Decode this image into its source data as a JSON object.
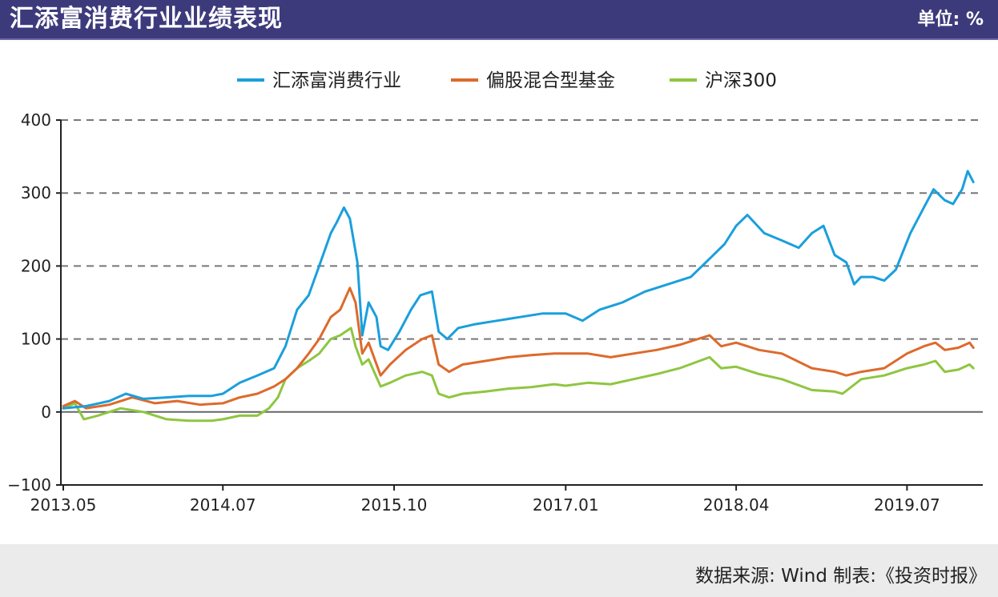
{
  "header": {
    "title": "汇添富消费行业业绩表现",
    "unit": "单位: %"
  },
  "footer": {
    "source": "数据来源: Wind  制表:《投资时报》"
  },
  "colors": {
    "header_bg": "#3d3a7c",
    "series1": "#1a9fdc",
    "series2": "#dd6a2c",
    "series3": "#8ec640",
    "grid": "#777777"
  },
  "chart_data": {
    "type": "line",
    "ylim": [
      -100,
      400
    ],
    "y_ticks": [
      {
        "label": "400",
        "value": 400
      },
      {
        "label": "300",
        "value": 300
      },
      {
        "label": "200",
        "value": 200
      },
      {
        "label": "100",
        "value": 100
      },
      {
        "label": "0",
        "value": 0
      },
      {
        "label": "−100",
        "value": -100
      }
    ],
    "x_range": [
      "2013-05-01",
      "2019-12-31"
    ],
    "x_ticks": [
      {
        "label": "2013.05",
        "date": "2013-05-01"
      },
      {
        "label": "2014.07",
        "date": "2014-07-01"
      },
      {
        "label": "2015.10",
        "date": "2015-10-01"
      },
      {
        "label": "2017.01",
        "date": "2017-01-01"
      },
      {
        "label": "2018.04",
        "date": "2018-04-01"
      },
      {
        "label": "2019.07",
        "date": "2019-07-01"
      }
    ],
    "legend_position": "top",
    "grid": "horizontal dashed",
    "series": [
      {
        "name": "汇添富消费行业",
        "points": [
          [
            "2013-05-01",
            5
          ],
          [
            "2013-07-01",
            8
          ],
          [
            "2013-09-01",
            15
          ],
          [
            "2013-10-15",
            25
          ],
          [
            "2013-12-01",
            18
          ],
          [
            "2014-02-01",
            20
          ],
          [
            "2014-04-01",
            22
          ],
          [
            "2014-06-01",
            22
          ],
          [
            "2014-07-01",
            25
          ],
          [
            "2014-08-15",
            40
          ],
          [
            "2014-10-01",
            50
          ],
          [
            "2014-11-15",
            60
          ],
          [
            "2014-12-15",
            90
          ],
          [
            "2015-01-15",
            140
          ],
          [
            "2015-02-15",
            160
          ],
          [
            "2015-03-15",
            200
          ],
          [
            "2015-04-15",
            245
          ],
          [
            "2015-05-01",
            260
          ],
          [
            "2015-05-20",
            280
          ],
          [
            "2015-06-05",
            265
          ],
          [
            "2015-06-25",
            205
          ],
          [
            "2015-07-08",
            105
          ],
          [
            "2015-07-25",
            150
          ],
          [
            "2015-08-15",
            130
          ],
          [
            "2015-08-26",
            90
          ],
          [
            "2015-09-15",
            85
          ],
          [
            "2015-10-15",
            110
          ],
          [
            "2015-11-15",
            140
          ],
          [
            "2015-12-10",
            160
          ],
          [
            "2016-01-10",
            165
          ],
          [
            "2016-01-28",
            110
          ],
          [
            "2016-02-20",
            100
          ],
          [
            "2016-03-20",
            115
          ],
          [
            "2016-05-01",
            120
          ],
          [
            "2016-07-01",
            125
          ],
          [
            "2016-09-01",
            130
          ],
          [
            "2016-11-01",
            135
          ],
          [
            "2017-01-01",
            135
          ],
          [
            "2017-02-15",
            125
          ],
          [
            "2017-04-01",
            140
          ],
          [
            "2017-06-01",
            150
          ],
          [
            "2017-08-01",
            165
          ],
          [
            "2017-10-01",
            175
          ],
          [
            "2017-12-01",
            185
          ],
          [
            "2018-01-20",
            210
          ],
          [
            "2018-03-01",
            230
          ],
          [
            "2018-04-01",
            255
          ],
          [
            "2018-05-01",
            270
          ],
          [
            "2018-06-15",
            245
          ],
          [
            "2018-08-01",
            235
          ],
          [
            "2018-09-15",
            225
          ],
          [
            "2018-10-20",
            245
          ],
          [
            "2018-11-20",
            255
          ],
          [
            "2018-12-20",
            215
          ],
          [
            "2019-01-20",
            205
          ],
          [
            "2019-02-10",
            175
          ],
          [
            "2019-02-28",
            185
          ],
          [
            "2019-04-01",
            185
          ],
          [
            "2019-05-01",
            180
          ],
          [
            "2019-06-01",
            195
          ],
          [
            "2019-07-10",
            245
          ],
          [
            "2019-08-15",
            280
          ],
          [
            "2019-09-10",
            305
          ],
          [
            "2019-10-10",
            290
          ],
          [
            "2019-11-01",
            285
          ],
          [
            "2019-11-25",
            305
          ],
          [
            "2019-12-10",
            330
          ],
          [
            "2019-12-25",
            315
          ]
        ]
      },
      {
        "name": "偏股混合型基金",
        "points": [
          [
            "2013-05-01",
            8
          ],
          [
            "2013-06-01",
            15
          ],
          [
            "2013-07-01",
            5
          ],
          [
            "2013-09-01",
            10
          ],
          [
            "2013-11-01",
            20
          ],
          [
            "2014-01-01",
            12
          ],
          [
            "2014-03-01",
            15
          ],
          [
            "2014-05-01",
            10
          ],
          [
            "2014-07-01",
            12
          ],
          [
            "2014-08-15",
            20
          ],
          [
            "2014-10-01",
            25
          ],
          [
            "2014-11-15",
            35
          ],
          [
            "2014-12-15",
            45
          ],
          [
            "2015-01-15",
            60
          ],
          [
            "2015-02-15",
            80
          ],
          [
            "2015-03-15",
            100
          ],
          [
            "2015-04-15",
            130
          ],
          [
            "2015-05-10",
            140
          ],
          [
            "2015-06-05",
            170
          ],
          [
            "2015-06-20",
            150
          ],
          [
            "2015-07-08",
            80
          ],
          [
            "2015-07-25",
            95
          ],
          [
            "2015-08-26",
            50
          ],
          [
            "2015-09-20",
            65
          ],
          [
            "2015-11-01",
            85
          ],
          [
            "2015-12-15",
            100
          ],
          [
            "2016-01-10",
            105
          ],
          [
            "2016-01-28",
            65
          ],
          [
            "2016-02-25",
            55
          ],
          [
            "2016-04-01",
            65
          ],
          [
            "2016-06-01",
            70
          ],
          [
            "2016-08-01",
            75
          ],
          [
            "2016-10-01",
            78
          ],
          [
            "2016-12-01",
            80
          ],
          [
            "2017-01-01",
            80
          ],
          [
            "2017-03-01",
            80
          ],
          [
            "2017-05-01",
            75
          ],
          [
            "2017-07-01",
            80
          ],
          [
            "2017-09-01",
            85
          ],
          [
            "2017-11-01",
            92
          ],
          [
            "2018-01-20",
            105
          ],
          [
            "2018-02-20",
            90
          ],
          [
            "2018-04-01",
            95
          ],
          [
            "2018-06-01",
            85
          ],
          [
            "2018-08-01",
            80
          ],
          [
            "2018-10-20",
            60
          ],
          [
            "2018-12-20",
            55
          ],
          [
            "2019-01-20",
            50
          ],
          [
            "2019-03-01",
            55
          ],
          [
            "2019-05-01",
            60
          ],
          [
            "2019-07-01",
            80
          ],
          [
            "2019-08-15",
            90
          ],
          [
            "2019-09-15",
            95
          ],
          [
            "2019-10-10",
            85
          ],
          [
            "2019-11-15",
            88
          ],
          [
            "2019-12-15",
            95
          ],
          [
            "2019-12-25",
            88
          ]
        ]
      },
      {
        "name": "沪深300",
        "points": [
          [
            "2013-05-01",
            5
          ],
          [
            "2013-06-01",
            12
          ],
          [
            "2013-06-25",
            -10
          ],
          [
            "2013-08-01",
            -5
          ],
          [
            "2013-10-01",
            5
          ],
          [
            "2013-12-01",
            0
          ],
          [
            "2014-02-01",
            -10
          ],
          [
            "2014-04-01",
            -12
          ],
          [
            "2014-06-01",
            -12
          ],
          [
            "2014-07-01",
            -10
          ],
          [
            "2014-08-15",
            -5
          ],
          [
            "2014-10-01",
            -5
          ],
          [
            "2014-11-01",
            5
          ],
          [
            "2014-11-25",
            20
          ],
          [
            "2014-12-15",
            45
          ],
          [
            "2015-01-15",
            60
          ],
          [
            "2015-02-15",
            70
          ],
          [
            "2015-03-15",
            80
          ],
          [
            "2015-04-15",
            100
          ],
          [
            "2015-05-10",
            105
          ],
          [
            "2015-06-08",
            115
          ],
          [
            "2015-06-20",
            90
          ],
          [
            "2015-07-08",
            65
          ],
          [
            "2015-07-25",
            72
          ],
          [
            "2015-08-26",
            35
          ],
          [
            "2015-09-20",
            40
          ],
          [
            "2015-11-01",
            50
          ],
          [
            "2015-12-15",
            55
          ],
          [
            "2016-01-10",
            50
          ],
          [
            "2016-01-28",
            25
          ],
          [
            "2016-02-25",
            20
          ],
          [
            "2016-04-01",
            25
          ],
          [
            "2016-06-01",
            28
          ],
          [
            "2016-08-01",
            32
          ],
          [
            "2016-10-01",
            34
          ],
          [
            "2016-12-01",
            38
          ],
          [
            "2017-01-01",
            36
          ],
          [
            "2017-03-01",
            40
          ],
          [
            "2017-05-01",
            38
          ],
          [
            "2017-07-01",
            45
          ],
          [
            "2017-09-01",
            52
          ],
          [
            "2017-11-01",
            60
          ],
          [
            "2018-01-20",
            75
          ],
          [
            "2018-02-20",
            60
          ],
          [
            "2018-04-01",
            62
          ],
          [
            "2018-06-01",
            52
          ],
          [
            "2018-08-01",
            45
          ],
          [
            "2018-10-20",
            30
          ],
          [
            "2018-12-20",
            28
          ],
          [
            "2019-01-10",
            25
          ],
          [
            "2019-03-01",
            45
          ],
          [
            "2019-05-01",
            50
          ],
          [
            "2019-06-01",
            55
          ],
          [
            "2019-07-01",
            60
          ],
          [
            "2019-08-15",
            65
          ],
          [
            "2019-09-15",
            70
          ],
          [
            "2019-10-10",
            55
          ],
          [
            "2019-11-15",
            58
          ],
          [
            "2019-12-15",
            65
          ],
          [
            "2019-12-25",
            60
          ]
        ]
      }
    ]
  }
}
